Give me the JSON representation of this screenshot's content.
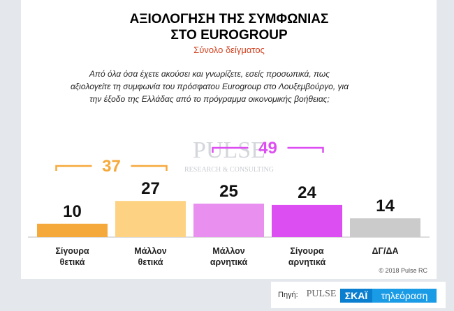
{
  "chart_data": {
    "type": "bar",
    "title": [
      "ΑΞΙΟΛΟΓΗΣΗ ΤΗΣ ΣΥΜΦΩΝΙΑΣ",
      "ΣΤΟ EUROGROUP"
    ],
    "subtitle": "Σύνολο δείγματος",
    "question": "Από όλα όσα έχετε ακούσει και γνωρίζετε, εσείς προσωπικά, πως αξιολογείτε τη συμφωνία του πρόσφατου Eurogroup στο Λουξεμβούργο, για την έξοδο της Ελλάδας από το πρόγραμμα οικονομικής βοήθειας;",
    "categories": [
      "Σίγουρα θετικά",
      "Μάλλον θετικά",
      "Μάλλον αρνητικά",
      "Σίγουρα αρνητικά",
      "ΔΓ/ΔΑ"
    ],
    "values": [
      10,
      27,
      25,
      24,
      14
    ],
    "colors": [
      "#f6a93b",
      "#fdd383",
      "#e88fef",
      "#dd4ef2",
      "#cbcbcb"
    ],
    "groups": [
      {
        "value": 37,
        "color": "#f6a93b"
      },
      {
        "value": 49,
        "color": "#dd4ef2"
      }
    ],
    "watermark": [
      "PULSE",
      "RESEARCH & CONSULTING"
    ],
    "copyright": "© 2018 Pulse RC",
    "source_label": "Πηγή:",
    "source_logos": [
      "PULSE",
      "ΣΚΑΪ",
      "τηλεόραση"
    ]
  }
}
